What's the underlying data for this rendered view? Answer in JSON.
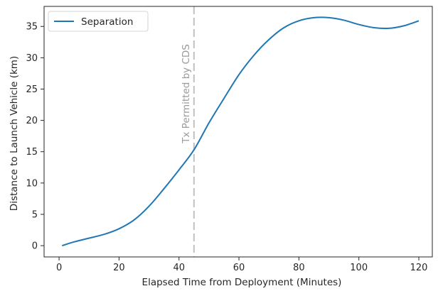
{
  "chart_data": {
    "type": "line",
    "title": "",
    "xlabel": "Elapsed Time from Deployment (Minutes)",
    "ylabel": "Distance to Launch Vehicle (km)",
    "xlim": [
      -5.0,
      124.5
    ],
    "ylim": [
      -1.8,
      38.2
    ],
    "xticks": [
      0,
      20,
      40,
      60,
      80,
      100,
      120
    ],
    "yticks": [
      0,
      5,
      10,
      15,
      20,
      25,
      30,
      35
    ],
    "grid": false,
    "legend_position": "top-left",
    "series": [
      {
        "name": "Separation",
        "color": "#1f77b4",
        "x": [
          1,
          5,
          10,
          15,
          20,
          25,
          30,
          35,
          40,
          45,
          50,
          55,
          60,
          65,
          70,
          75,
          80,
          85,
          90,
          95,
          100,
          105,
          110,
          115,
          120
        ],
        "y": [
          0,
          0.6,
          1.2,
          1.8,
          2.7,
          4.1,
          6.3,
          9.1,
          12.1,
          15.3,
          19.6,
          23.5,
          27.3,
          30.4,
          32.9,
          34.8,
          35.9,
          36.4,
          36.4,
          36.0,
          35.3,
          34.8,
          34.7,
          35.1,
          35.9
        ]
      }
    ],
    "annotations": [
      {
        "type": "vline",
        "x": 45,
        "label": "Tx Permitted by CDS",
        "color": "#c0c0c0"
      }
    ]
  }
}
